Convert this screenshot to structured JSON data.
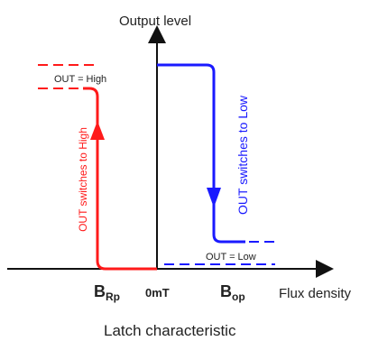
{
  "diagram": {
    "title": "Latch characteristic",
    "y_axis_label": "Output level",
    "x_axis_label": "Flux density",
    "origin_label": "0mT",
    "brp_label": {
      "main": "B",
      "sub": "Rp"
    },
    "bop_label": {
      "main": "B",
      "sub": "op"
    },
    "out_high_label": "OUT = High",
    "out_low_label": "OUT = Low",
    "switch_to_high_label": "OUT switches to High",
    "switch_to_low_label": "OUT switches to Low"
  },
  "colors": {
    "axis": "#111111",
    "high_transition": "#ff1a1a",
    "low_transition": "#1a1aff",
    "text": "#222222"
  }
}
